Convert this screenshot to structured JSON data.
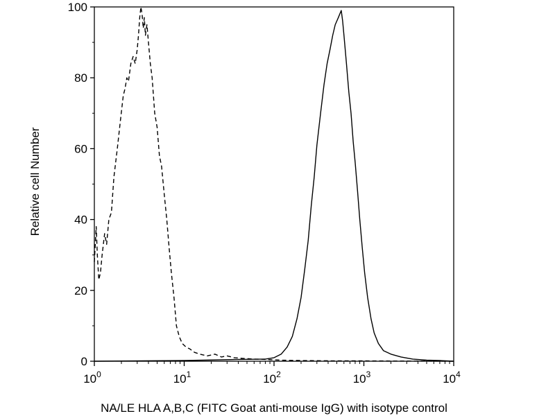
{
  "chart_data": {
    "type": "line",
    "title": "",
    "xlabel": "NA/LE HLA A,B,C (FITC Goat anti-mouse IgG) with isotype control",
    "ylabel": "Relative cell Number",
    "x_scale": "log",
    "xlim": [
      1,
      10000
    ],
    "ylim": [
      0,
      100
    ],
    "x_ticks": [
      {
        "value": 1,
        "base": "10",
        "exp": "0"
      },
      {
        "value": 10,
        "base": "10",
        "exp": "1"
      },
      {
        "value": 100,
        "base": "10",
        "exp": "2"
      },
      {
        "value": 1000,
        "base": "10",
        "exp": "3"
      },
      {
        "value": 10000,
        "base": "10",
        "exp": "4"
      }
    ],
    "y_ticks": [
      {
        "value": 0,
        "label": "0"
      },
      {
        "value": 20,
        "label": "20"
      },
      {
        "value": 40,
        "label": "40"
      },
      {
        "value": 60,
        "label": "60"
      },
      {
        "value": 80,
        "label": "80"
      },
      {
        "value": 100,
        "label": "100"
      }
    ],
    "grid": false,
    "legend": "none",
    "series": [
      {
        "style": "dashed",
        "color": "#000000",
        "points": [
          [
            1.0,
            28
          ],
          [
            1.05,
            38
          ],
          [
            1.08,
            30
          ],
          [
            1.12,
            23
          ],
          [
            1.17,
            25
          ],
          [
            1.22,
            30
          ],
          [
            1.3,
            36
          ],
          [
            1.37,
            33
          ],
          [
            1.45,
            40
          ],
          [
            1.55,
            42
          ],
          [
            1.65,
            52
          ],
          [
            1.8,
            60
          ],
          [
            1.95,
            68
          ],
          [
            2.1,
            75
          ],
          [
            2.2,
            77
          ],
          [
            2.3,
            80
          ],
          [
            2.4,
            79
          ],
          [
            2.55,
            84
          ],
          [
            2.7,
            86
          ],
          [
            2.85,
            84
          ],
          [
            3.0,
            88
          ],
          [
            3.1,
            92
          ],
          [
            3.2,
            97
          ],
          [
            3.3,
            100
          ],
          [
            3.4,
            98
          ],
          [
            3.5,
            94
          ],
          [
            3.6,
            97
          ],
          [
            3.7,
            92
          ],
          [
            3.85,
            95
          ],
          [
            4.0,
            90
          ],
          [
            4.2,
            84
          ],
          [
            4.4,
            80
          ],
          [
            4.7,
            70
          ],
          [
            5.0,
            66
          ],
          [
            5.3,
            58
          ],
          [
            5.6,
            55
          ],
          [
            6.0,
            47
          ],
          [
            6.4,
            40
          ],
          [
            6.8,
            32
          ],
          [
            7.2,
            25
          ],
          [
            7.7,
            18
          ],
          [
            8.2,
            10
          ],
          [
            8.8,
            7
          ],
          [
            9.5,
            5
          ],
          [
            10.5,
            4
          ],
          [
            11.5,
            3.5
          ],
          [
            13,
            2.5
          ],
          [
            15,
            2
          ],
          [
            18,
            1.5
          ],
          [
            22,
            2
          ],
          [
            26,
            1.2
          ],
          [
            30,
            1.5
          ],
          [
            36,
            1
          ],
          [
            45,
            0.8
          ],
          [
            60,
            0.6
          ],
          [
            80,
            0.5
          ],
          [
            120,
            0.3
          ],
          [
            200,
            0.2
          ],
          [
            500,
            0.1
          ],
          [
            1000,
            0.1
          ],
          [
            10000,
            0
          ]
        ]
      },
      {
        "style": "solid",
        "color": "#000000",
        "points": [
          [
            1.0,
            0
          ],
          [
            10,
            0.2
          ],
          [
            40,
            0.5
          ],
          [
            80,
            0.6
          ],
          [
            100,
            1
          ],
          [
            120,
            2
          ],
          [
            140,
            4
          ],
          [
            160,
            7
          ],
          [
            180,
            12
          ],
          [
            200,
            18
          ],
          [
            220,
            26
          ],
          [
            240,
            34
          ],
          [
            260,
            44
          ],
          [
            280,
            52
          ],
          [
            300,
            61
          ],
          [
            330,
            70
          ],
          [
            360,
            78
          ],
          [
            390,
            84
          ],
          [
            420,
            88
          ],
          [
            450,
            92
          ],
          [
            480,
            95
          ],
          [
            500,
            96
          ],
          [
            520,
            97
          ],
          [
            540,
            98
          ],
          [
            560,
            99
          ],
          [
            580,
            96
          ],
          [
            600,
            92
          ],
          [
            640,
            84
          ],
          [
            680,
            76
          ],
          [
            720,
            70
          ],
          [
            760,
            62
          ],
          [
            800,
            56
          ],
          [
            850,
            48
          ],
          [
            900,
            40
          ],
          [
            960,
            32
          ],
          [
            1020,
            25
          ],
          [
            1100,
            18
          ],
          [
            1200,
            12
          ],
          [
            1300,
            8
          ],
          [
            1450,
            5
          ],
          [
            1650,
            3
          ],
          [
            2000,
            2
          ],
          [
            2600,
            1.2
          ],
          [
            3500,
            0.6
          ],
          [
            5000,
            0.3
          ],
          [
            7000,
            0.2
          ],
          [
            10000,
            0
          ]
        ]
      }
    ]
  }
}
